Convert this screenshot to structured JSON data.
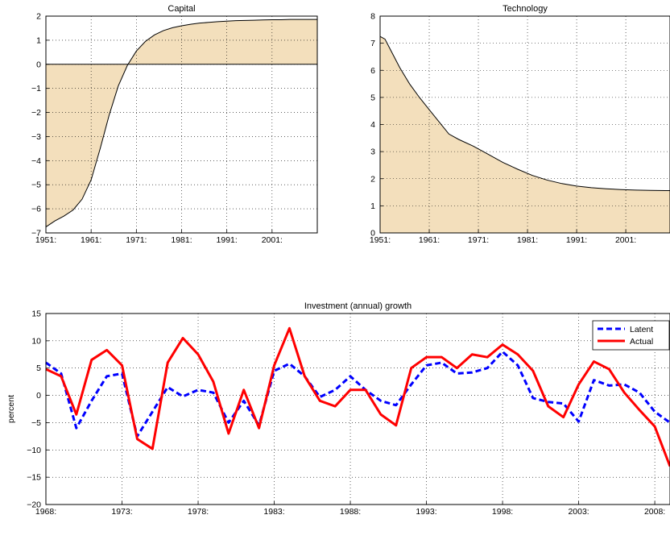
{
  "chart_data": [
    {
      "type": "area",
      "title": "Capital",
      "xlabel": "",
      "ylabel": "",
      "x_ticks": [
        "1951:",
        "1961:",
        "1971:",
        "1981:",
        "1991:",
        "2001:"
      ],
      "y_ticks": [
        "−7",
        "−6",
        "−5",
        "−4",
        "−3",
        "−2",
        "−1",
        "0",
        "1",
        "2"
      ],
      "xlim": [
        1951,
        2011
      ],
      "ylim": [
        -7,
        2
      ],
      "grid": true,
      "fill_color": "#f3dfbc",
      "line_color": "#000000",
      "zero_line": true,
      "x": [
        1951,
        1953,
        1955,
        1957,
        1959,
        1961,
        1963,
        1965,
        1967,
        1969,
        1971,
        1973,
        1975,
        1977,
        1979,
        1981,
        1983,
        1985,
        1987,
        1989,
        1991,
        1993,
        1995,
        1997,
        1999,
        2001,
        2003,
        2005,
        2007,
        2009,
        2011
      ],
      "values": [
        -6.75,
        -6.5,
        -6.3,
        -6.05,
        -5.6,
        -4.8,
        -3.5,
        -2.1,
        -0.9,
        -0.05,
        0.55,
        0.95,
        1.22,
        1.4,
        1.52,
        1.6,
        1.66,
        1.71,
        1.74,
        1.77,
        1.79,
        1.81,
        1.82,
        1.83,
        1.84,
        1.85,
        1.85,
        1.86,
        1.86,
        1.86,
        1.86
      ]
    },
    {
      "type": "area",
      "title": "Technology",
      "xlabel": "",
      "ylabel": "",
      "x_ticks": [
        "1951:",
        "1961:",
        "1971:",
        "1981:",
        "1991:",
        "2001:"
      ],
      "y_ticks": [
        "0",
        "1",
        "2",
        "3",
        "4",
        "5",
        "6",
        "7",
        "8"
      ],
      "xlim": [
        1951,
        2010
      ],
      "ylim": [
        0,
        8
      ],
      "grid": true,
      "fill_color": "#f3dfbc",
      "line_color": "#000000",
      "x": [
        1951,
        1952,
        1953,
        1955,
        1957,
        1959,
        1961,
        1963,
        1965,
        1967,
        1970,
        1973,
        1976,
        1979,
        1982,
        1985,
        1988,
        1991,
        1994,
        1997,
        2000,
        2003,
        2006,
        2009,
        2010
      ],
      "values": [
        7.25,
        7.15,
        6.8,
        6.1,
        5.5,
        5.0,
        4.55,
        4.1,
        3.65,
        3.45,
        3.2,
        2.9,
        2.6,
        2.35,
        2.12,
        1.95,
        1.82,
        1.73,
        1.67,
        1.63,
        1.6,
        1.58,
        1.57,
        1.56,
        1.56
      ]
    },
    {
      "type": "line",
      "title": "Investment (annual) growth",
      "xlabel": "",
      "ylabel": "percent",
      "x_ticks": [
        "1968:",
        "1973:",
        "1978:",
        "1983:",
        "1988:",
        "1993:",
        "1998:",
        "2003:",
        "2008:"
      ],
      "y_ticks": [
        "−20",
        "−15",
        "−10",
        "−5",
        "0",
        "5",
        "10",
        "15"
      ],
      "xlim": [
        1968,
        2009
      ],
      "ylim": [
        -20,
        15
      ],
      "grid": true,
      "legend_position": "top-right",
      "x": [
        1968,
        1969,
        1970,
        1971,
        1972,
        1973,
        1974,
        1975,
        1976,
        1977,
        1978,
        1979,
        1980,
        1981,
        1982,
        1983,
        1984,
        1985,
        1986,
        1987,
        1988,
        1989,
        1990,
        1991,
        1992,
        1993,
        1994,
        1995,
        1996,
        1997,
        1998,
        1999,
        2000,
        2001,
        2002,
        2003,
        2004,
        2005,
        2006,
        2007,
        2008,
        2009
      ],
      "series": [
        {
          "name": "Latent",
          "color": "#0000ff",
          "style": "dashed",
          "values": [
            6.0,
            4.0,
            -6.0,
            -1.0,
            3.5,
            4.0,
            -7.5,
            -3.0,
            1.5,
            -0.2,
            1.0,
            0.5,
            -5.0,
            -1.0,
            -5.5,
            4.5,
            5.8,
            3.5,
            -0.3,
            1.0,
            3.5,
            1.0,
            -1.0,
            -1.8,
            2.0,
            5.5,
            6.0,
            4.0,
            4.2,
            5.0,
            8.0,
            5.5,
            -0.5,
            -1.2,
            -1.5,
            -4.8,
            2.8,
            1.8,
            2.0,
            0.5,
            -3.0,
            -5.0
          ]
        },
        {
          "name": "Actual",
          "color": "#ff0000",
          "style": "solid",
          "values": [
            4.8,
            3.5,
            -3.5,
            6.5,
            8.3,
            5.5,
            -8.0,
            -9.8,
            6.0,
            10.5,
            7.5,
            2.5,
            -7.0,
            1.0,
            -6.0,
            5.5,
            12.3,
            3.5,
            -1.0,
            -2.0,
            1.0,
            1.0,
            -3.5,
            -5.5,
            5.0,
            7.0,
            7.0,
            5.0,
            7.5,
            7.0,
            9.3,
            7.5,
            4.5,
            -2.0,
            -4.0,
            2.0,
            6.2,
            4.8,
            0.5,
            -2.7,
            -5.7,
            -13.0
          ]
        }
      ]
    }
  ]
}
